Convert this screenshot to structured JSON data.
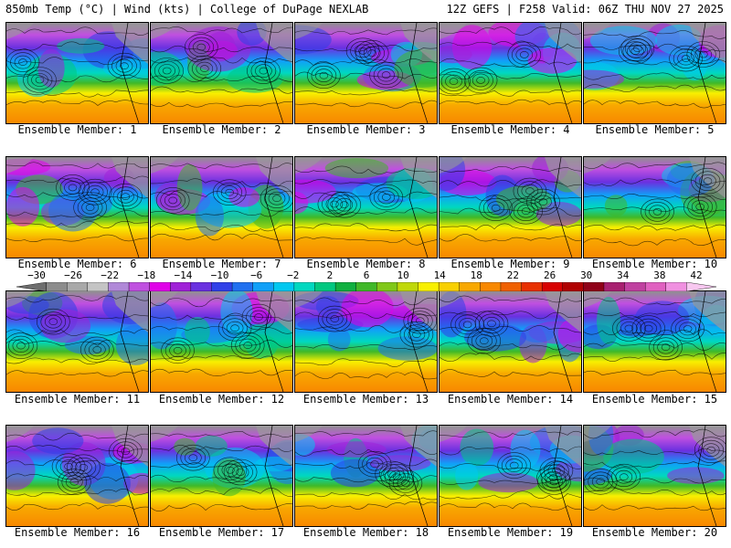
{
  "header": {
    "left_title": "850mb Temp (°C) | Wind (kts) | College of DuPage NEXLAB",
    "right_title": "12Z GEFS | F258 Valid: 06Z THU NOV 27 2025"
  },
  "members": [
    {
      "label": "Ensemble Member: 1"
    },
    {
      "label": "Ensemble Member: 2"
    },
    {
      "label": "Ensemble Member: 3"
    },
    {
      "label": "Ensemble Member: 4"
    },
    {
      "label": "Ensemble Member: 5"
    },
    {
      "label": "Ensemble Member: 6"
    },
    {
      "label": "Ensemble Member: 7"
    },
    {
      "label": "Ensemble Member: 8"
    },
    {
      "label": "Ensemble Member: 9"
    },
    {
      "label": "Ensemble Member: 10"
    },
    {
      "label": "Ensemble Member: 11"
    },
    {
      "label": "Ensemble Member: 12"
    },
    {
      "label": "Ensemble Member: 13"
    },
    {
      "label": "Ensemble Member: 14"
    },
    {
      "label": "Ensemble Member: 15"
    },
    {
      "label": "Ensemble Member: 16"
    },
    {
      "label": "Ensemble Member: 17"
    },
    {
      "label": "Ensemble Member: 18"
    },
    {
      "label": "Ensemble Member: 19"
    },
    {
      "label": "Ensemble Member: 20"
    }
  ],
  "colorbar": {
    "labels": [
      "−30",
      "−26",
      "−22",
      "−18",
      "−14",
      "−10",
      "−6",
      "−2",
      "2",
      "6",
      "10",
      "14",
      "18",
      "22",
      "26",
      "30",
      "34",
      "38",
      "42"
    ],
    "colors": [
      "#6e6e6e",
      "#8c8c8c",
      "#a8a8a8",
      "#c4c4c4",
      "#b088d8",
      "#c050e0",
      "#e000e8",
      "#a020d8",
      "#6a30e0",
      "#3040e8",
      "#2070f0",
      "#10a0f8",
      "#00c8f0",
      "#00d8c0",
      "#00c880",
      "#10b040",
      "#40b828",
      "#80c818",
      "#c0d808",
      "#f8f000",
      "#f8d000",
      "#f8a800",
      "#f88800",
      "#f06000",
      "#e83000",
      "#d80000",
      "#b00000",
      "#900018",
      "#a82070",
      "#c040a0",
      "#e060c0",
      "#f090e0",
      "#f8c8f0"
    ]
  }
}
